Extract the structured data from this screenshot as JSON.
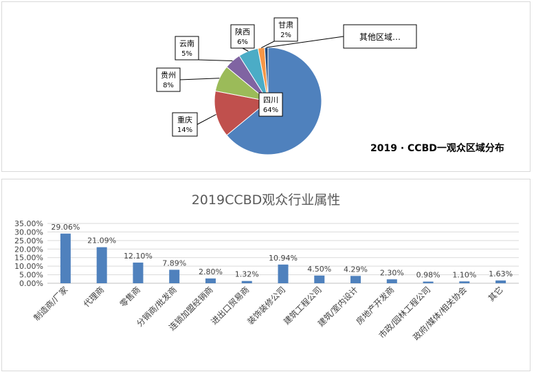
{
  "chart_data": [
    {
      "type": "pie",
      "title": "2019 · CCBD一观众区域分布",
      "slices": [
        {
          "label": "四川",
          "value_label": "64%",
          "value": 64,
          "color": "#4f81bd"
        },
        {
          "label": "重庆",
          "value_label": "14%",
          "value": 14,
          "color": "#c0504d"
        },
        {
          "label": "贵州",
          "value_label": "8%",
          "value": 8,
          "color": "#9bbb59"
        },
        {
          "label": "云南",
          "value_label": "5%",
          "value": 5,
          "color": "#8064a2"
        },
        {
          "label": "陕西",
          "value_label": "6%",
          "value": 6,
          "color": "#4bacc6"
        },
        {
          "label": "甘肃",
          "value_label": "2%",
          "value": 2,
          "color": "#f79646"
        },
        {
          "label": "其他区域…",
          "value_label": "",
          "value": 1,
          "color": "#1f497d"
        }
      ]
    },
    {
      "type": "bar",
      "title": "2019CCBD观众行业属性",
      "categories": [
        "制造商/厂家",
        "代理商",
        "零售商",
        "分销商/批发商",
        "连锁加盟经销商",
        "进出口贸易商",
        "装饰装修公司",
        "建筑工程公司",
        "建筑/室内设计",
        "房地产开发商",
        "市政/园林工程公司",
        "政府/媒体/相关协会",
        "其它"
      ],
      "values": [
        29.06,
        21.09,
        12.1,
        7.89,
        2.8,
        1.32,
        10.94,
        4.5,
        4.29,
        2.3,
        0.98,
        1.1,
        1.63
      ],
      "value_labels": [
        "29.06%",
        "21.09%",
        "12.10%",
        "7.89%",
        "2.80%",
        "1.32%",
        "10.94%",
        "4.50%",
        "4.29%",
        "2.30%",
        "0.98%",
        "1.10%",
        "1.63%"
      ],
      "yticks": [
        "0.00%",
        "5.00%",
        "10.00%",
        "15.00%",
        "20.00%",
        "25.00%",
        "30.00%",
        "35.00%"
      ],
      "ylim": [
        0,
        35
      ],
      "bar_color": "#4f81bd",
      "grid": true
    }
  ]
}
